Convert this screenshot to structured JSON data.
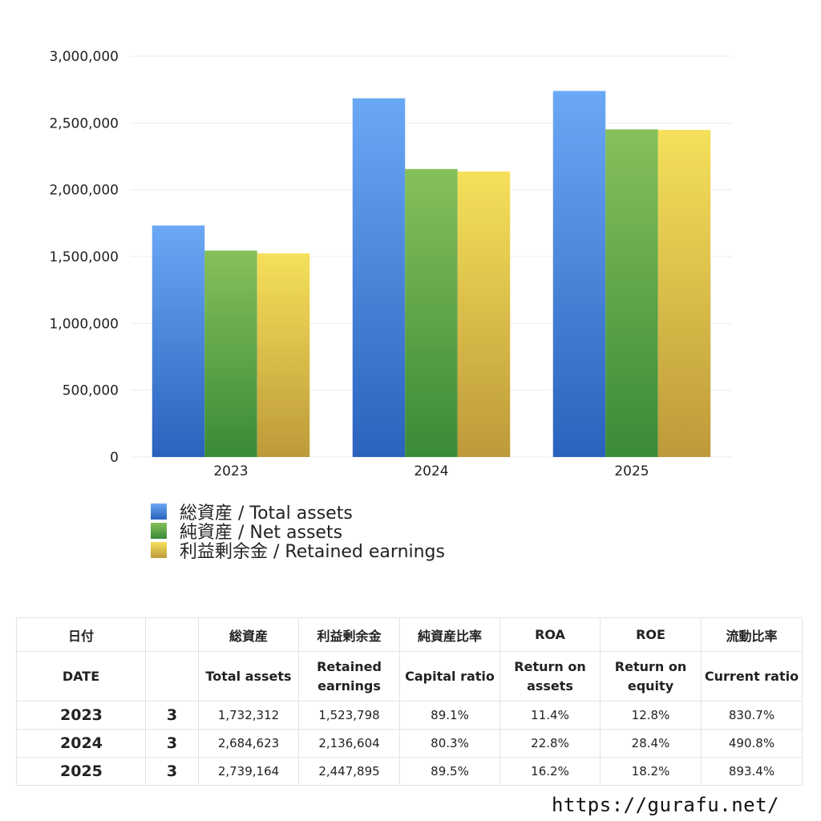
{
  "chart_data": {
    "type": "bar",
    "categories": [
      "2023",
      "2024",
      "2025"
    ],
    "series": [
      {
        "name": "総資産 / Total assets",
        "values": [
          1732312,
          2684623,
          2739164
        ],
        "color": "#3a7fd8"
      },
      {
        "name": "純資産 / Net assets",
        "values": [
          1545000,
          2155000,
          2452000
        ],
        "color": "#4f9e3f"
      },
      {
        "name": "利益剰余金 / Retained earnings",
        "values": [
          1523798,
          2136604,
          2447895
        ],
        "color": "#e0c34a"
      }
    ],
    "y_ticks": [
      "0",
      "500,000",
      "1,000,000",
      "1,500,000",
      "2,000,000",
      "2,500,000",
      "3,000,000"
    ],
    "ylim": [
      0,
      3000000
    ],
    "grid": true,
    "legend_position": "bottom-left"
  },
  "table": {
    "header_jp": [
      "日付",
      "",
      "総資産",
      "利益剰余金",
      "純資産比率",
      "ROA",
      "ROE",
      "流動比率"
    ],
    "header_en": [
      "DATE",
      "",
      "Total assets",
      "Retained earnings",
      "Capital ratio",
      "Return on assets",
      "Return on equity",
      "Current ratio"
    ],
    "rows": [
      {
        "year": "2023",
        "month": "3",
        "total_assets": "1,732,312",
        "retained_earnings": "1,523,798",
        "capital_ratio": "89.1%",
        "roa": "11.4%",
        "roe": "12.8%",
        "current_ratio": "830.7%"
      },
      {
        "year": "2024",
        "month": "3",
        "total_assets": "2,684,623",
        "retained_earnings": "2,136,604",
        "capital_ratio": "80.3%",
        "roa": "22.8%",
        "roe": "28.4%",
        "current_ratio": "490.8%"
      },
      {
        "year": "2025",
        "month": "3",
        "total_assets": "2,739,164",
        "retained_earnings": "2,447,895",
        "capital_ratio": "89.5%",
        "roa": "16.2%",
        "roe": "18.2%",
        "current_ratio": "893.4%"
      }
    ]
  },
  "footer": {
    "url": "https://gurafu.net/"
  }
}
